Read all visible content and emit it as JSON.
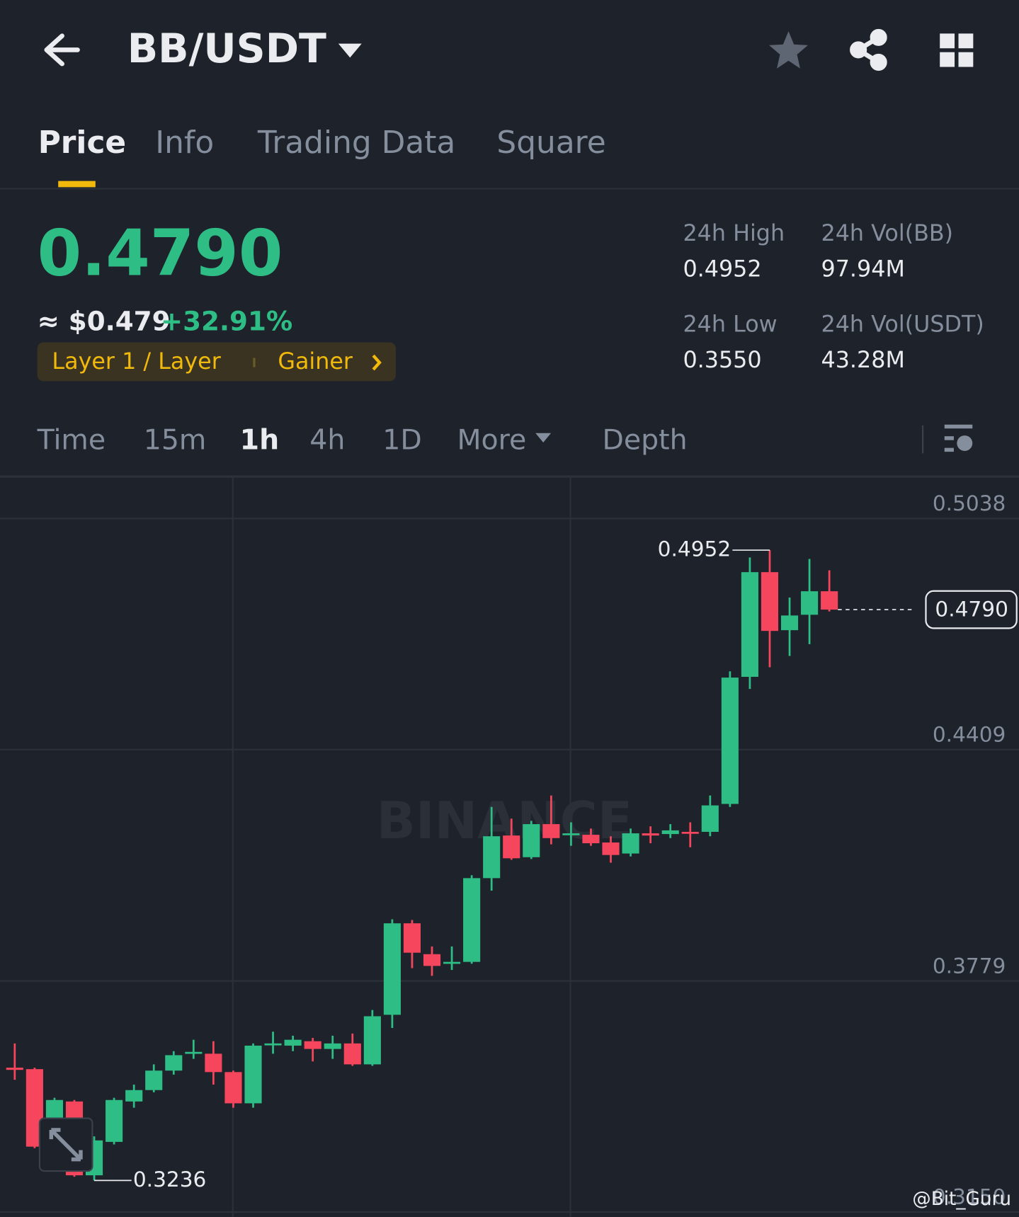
{
  "header": {
    "title": "BB/USDT"
  },
  "tabs": [
    "Price",
    "Info",
    "Trading Data",
    "Square"
  ],
  "price": {
    "last": "0.4790",
    "usd": "≈ $0.479",
    "change": "+32.91%"
  },
  "tags": [
    "Layer 1 / Layer",
    "Gainer"
  ],
  "stats": [
    {
      "label": "24h High",
      "value": "0.4952"
    },
    {
      "label": "24h Vol(BB)",
      "value": "97.94M"
    },
    {
      "label": "24h Low",
      "value": "0.3550"
    },
    {
      "label": "24h Vol(USDT)",
      "value": "43.28M"
    }
  ],
  "intervals": [
    "Time",
    "15m",
    "1h",
    "4h",
    "1D",
    "More",
    "Depth"
  ],
  "watermark": "BINANCE",
  "credit": "@Bit_Guru",
  "chart_data": {
    "type": "candlestick",
    "up_color": "#2ebd85",
    "down_color": "#f6465d",
    "grid": true,
    "ylim": [
      0.3137,
      0.515
    ],
    "yticks": [
      0.5038,
      0.4409,
      0.3779,
      {
        "value": 0.315,
        "label": "0.3150"
      }
    ],
    "open": [
      0.3543,
      0.3539,
      0.3404,
      0.3451,
      0.325,
      0.3341,
      0.3451,
      0.3482,
      0.3535,
      0.3581,
      0.3581,
      0.3531,
      0.3446,
      0.3605,
      0.3603,
      0.3615,
      0.3594,
      0.3609,
      0.3552,
      0.3687,
      0.3936,
      0.3852,
      0.3826,
      0.3831,
      0.4059,
      0.4175,
      0.4116,
      0.4206,
      0.4177,
      0.4177,
      0.4156,
      0.4126,
      0.4181,
      0.4179,
      0.4185,
      0.4185,
      0.4261,
      0.4607,
      0.4892,
      0.4734,
      0.4776,
      0.484
    ],
    "high": [
      0.3609,
      0.3543,
      0.3461,
      0.3455,
      0.3356,
      0.3461,
      0.3497,
      0.3552,
      0.3588,
      0.3619,
      0.3615,
      0.3535,
      0.3609,
      0.3641,
      0.363,
      0.3624,
      0.363,
      0.3636,
      0.37,
      0.3947,
      0.3945,
      0.3873,
      0.3873,
      0.4067,
      0.4253,
      0.4221,
      0.4215,
      0.4284,
      0.4211,
      0.4194,
      0.4173,
      0.4194,
      0.42,
      0.4206,
      0.4211,
      0.4284,
      0.4622,
      0.4932,
      0.4952,
      0.4823,
      0.4928,
      0.4897
    ],
    "low": [
      0.351,
      0.3324,
      0.3324,
      0.3246,
      0.3236,
      0.3334,
      0.3434,
      0.3476,
      0.3524,
      0.3567,
      0.3497,
      0.3434,
      0.3434,
      0.3581,
      0.3588,
      0.356,
      0.3567,
      0.3548,
      0.3548,
      0.3651,
      0.3814,
      0.3793,
      0.3809,
      0.3826,
      0.4025,
      0.4109,
      0.4111,
      0.4151,
      0.4147,
      0.4147,
      0.4101,
      0.4118,
      0.4154,
      0.4168,
      0.4143,
      0.4173,
      0.4253,
      0.4574,
      0.4633,
      0.4664,
      0.4696,
      0.4785
    ],
    "close": [
      0.3537,
      0.3328,
      0.3455,
      0.325,
      0.3345,
      0.3455,
      0.3482,
      0.3535,
      0.3577,
      0.3586,
      0.3531,
      0.3446,
      0.3603,
      0.3609,
      0.3619,
      0.3594,
      0.3609,
      0.3552,
      0.3683,
      0.3936,
      0.3856,
      0.382,
      0.3831,
      0.4059,
      0.4173,
      0.4113,
      0.4206,
      0.4168,
      0.4181,
      0.4154,
      0.4122,
      0.4181,
      0.4175,
      0.4189,
      0.4181,
      0.4257,
      0.4605,
      0.4892,
      0.4732,
      0.4774,
      0.484,
      0.479
    ],
    "annotations": [
      {
        "value": 0.4952,
        "label": "0.4952"
      },
      {
        "value": 0.3236,
        "label": "0.3236"
      },
      {
        "value": 0.479,
        "label": "0.4790"
      }
    ]
  }
}
